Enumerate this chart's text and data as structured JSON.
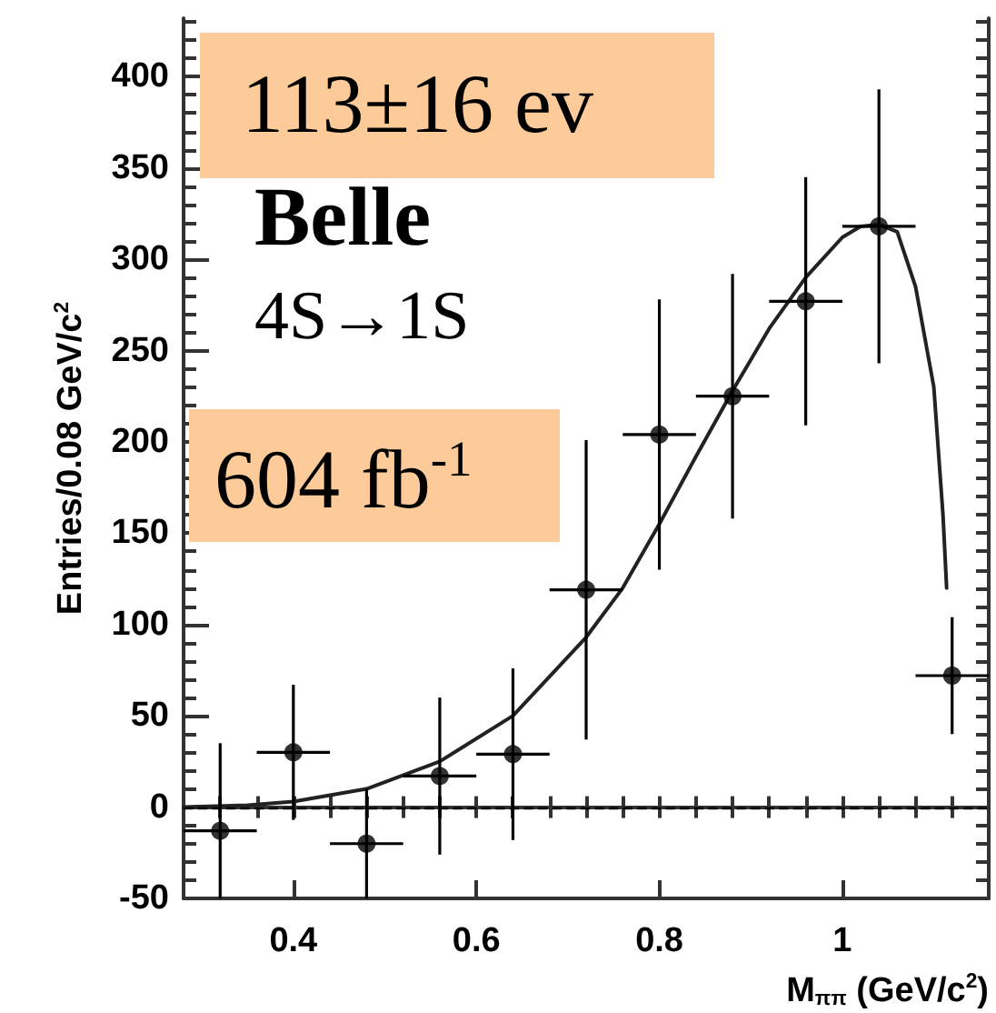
{
  "chart_data": {
    "type": "scatter",
    "xlabel": "M$_{ππ}$ (GeV/c$^{2}$)",
    "ylabel": "Entries/0.08 GeV/c$^{2}$",
    "annotations": [
      "113±16 ev",
      "Belle",
      "4S→1S",
      "604 fb$^{-1}$"
    ],
    "xlim": [
      0.28,
      1.16
    ],
    "xticks": [
      0.4,
      0.6,
      0.8,
      1
    ],
    "ylim": [
      -50,
      432
    ],
    "yticks": [
      -50,
      0,
      50,
      100,
      150,
      200,
      250,
      300,
      350,
      400
    ],
    "grid": false,
    "marker": "circle",
    "ref_lines": [
      {
        "axis": "y",
        "value": 0,
        "line_style": "dashed",
        "color": "#000000"
      }
    ],
    "series": [
      {
        "color": "#000000",
        "x": [
          0.32,
          0.4,
          0.48,
          0.56,
          0.64,
          0.72,
          0.8,
          0.88,
          0.96,
          1.04,
          1.12
        ],
        "values": [
          -13,
          30,
          -20,
          17,
          29,
          119,
          204,
          225,
          277,
          318,
          72
        ],
        "errors": [
          48,
          37,
          30,
          43,
          47,
          82,
          74,
          67,
          68,
          75,
          32
        ],
        "xerrors": [
          0.04,
          0.04,
          0.04,
          0.04,
          0.04,
          0.04,
          0.04,
          0.04,
          0.04,
          0.04,
          0.04
        ]
      },
      {
        "type": "line",
        "color": "#222222",
        "marker": "none",
        "line_style": "solid",
        "x": [
          0.28,
          0.35,
          0.4,
          0.48,
          0.56,
          0.64,
          0.72,
          0.76,
          0.8,
          0.84,
          0.88,
          0.92,
          0.96,
          1.0,
          1.02,
          1.04,
          1.06,
          1.08,
          1.1,
          1.11,
          1.114
        ],
        "values": [
          0,
          1,
          3,
          10,
          25,
          50,
          93,
          120,
          155,
          192,
          228,
          262,
          290,
          312,
          318,
          319,
          315,
          285,
          230,
          160,
          120
        ]
      }
    ]
  }
}
